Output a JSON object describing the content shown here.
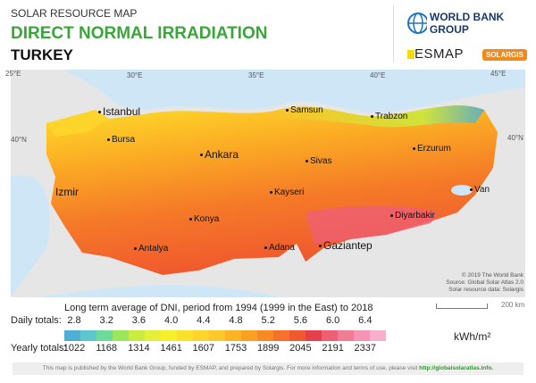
{
  "header": {
    "subtitle": "SOLAR RESOURCE MAP",
    "title": "DIRECT NORMAL IRRADIATION",
    "country": "TURKEY"
  },
  "logos": {
    "wbg": "WORLD BANK GROUP",
    "esmap": "ESMAP",
    "solargis": "SOLARGIS"
  },
  "map": {
    "longitudes": [
      "25°E",
      "30°E",
      "35°E",
      "40°E",
      "45°E"
    ],
    "latitudes": [
      "40°N",
      "40°N"
    ],
    "cities": [
      {
        "name": "Istanbul",
        "big": true
      },
      {
        "name": "Bursa"
      },
      {
        "name": "Ankara",
        "big": true
      },
      {
        "name": "Samsun"
      },
      {
        "name": "Trabzon"
      },
      {
        "name": "Erzurum"
      },
      {
        "name": "Sivas"
      },
      {
        "name": "Izmir",
        "big": true
      },
      {
        "name": "Kayseri"
      },
      {
        "name": "Van"
      },
      {
        "name": "Konya"
      },
      {
        "name": "Diyarbakir"
      },
      {
        "name": "Antalya"
      },
      {
        "name": "Adana"
      },
      {
        "name": "Gaziantep",
        "big": true
      }
    ],
    "credit": [
      "© 2019 The World Bank",
      "Source: Global Solar Atlas 2.0",
      "Solar resource data: Solargis"
    ],
    "scale": "200 km"
  },
  "legend": {
    "title": "Long term average of DNI, period from 1994 (1999 in the East) to 2018",
    "daily_label": "Daily totals:",
    "yearly_label": "Yearly totals:",
    "unit": "kWh/m²",
    "daily": [
      "2.8",
      "3.2",
      "3.6",
      "4.0",
      "4.4",
      "4.8",
      "5.2",
      "5.6",
      "6.0",
      "6.4"
    ],
    "yearly": [
      "1022",
      "1168",
      "1314",
      "1461",
      "1607",
      "1753",
      "1899",
      "2045",
      "2191",
      "2337"
    ],
    "colors": [
      "#4eaed3",
      "#5cc6cc",
      "#6ddc9a",
      "#9be65d",
      "#c9ec3e",
      "#e4f03a",
      "#f7ef2a",
      "#fbe22a",
      "#fdd52a",
      "#fdc82a",
      "#fcb324",
      "#f9a022",
      "#f78a26",
      "#f57228",
      "#f0582e",
      "#e5404a",
      "#ee5f74",
      "#f27c94",
      "#f695b3",
      "#f9afcc"
    ]
  },
  "footer": {
    "text": "This map is published by the World Bank Group, funded by ESMAP, and prepared by Solargis. For more information and terms of use, please visit ",
    "link": "http://globalsolaratlas.info."
  }
}
